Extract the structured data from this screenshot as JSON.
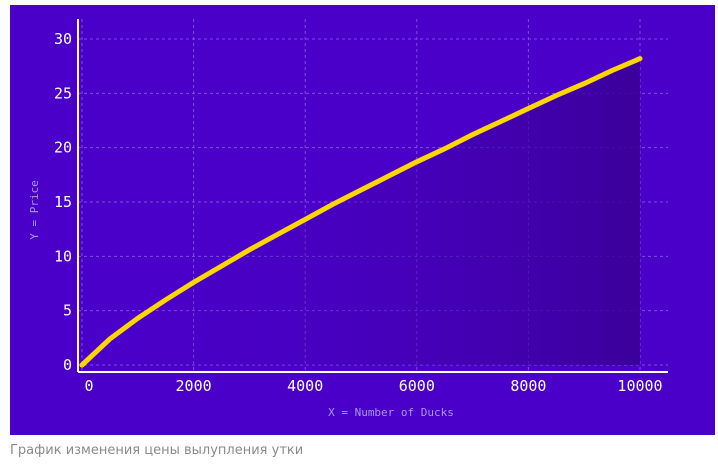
{
  "chart_data": {
    "type": "area",
    "xlabel": "X = Number of Ducks",
    "ylabel": "Y = Price",
    "xlim": [
      0,
      10000
    ],
    "ylim": [
      0,
      30
    ],
    "x_ticks": [
      0,
      2000,
      4000,
      6000,
      8000,
      10000
    ],
    "y_ticks": [
      0,
      5,
      10,
      15,
      20,
      25,
      30
    ],
    "grid": true,
    "series": [
      {
        "name": "price",
        "x": [
          0,
          500,
          1000,
          1500,
          2000,
          2500,
          3000,
          3500,
          4000,
          4500,
          5000,
          5500,
          6000,
          6500,
          7000,
          7500,
          8000,
          8500,
          9000,
          9500,
          10000
        ],
        "values": [
          0,
          2.4,
          4.3,
          6.0,
          7.6,
          9.1,
          10.6,
          12.0,
          13.4,
          14.8,
          16.1,
          17.4,
          18.7,
          19.9,
          21.2,
          22.4,
          23.6,
          24.8,
          25.9,
          27.1,
          28.2
        ]
      }
    ]
  },
  "colors": {
    "background": "#4a00c8",
    "line": "#ffd700",
    "fill": "#3a009a",
    "axis": "#ffffff",
    "grid": "#7a4de0"
  },
  "caption": "График изменения цены вылупления утки"
}
